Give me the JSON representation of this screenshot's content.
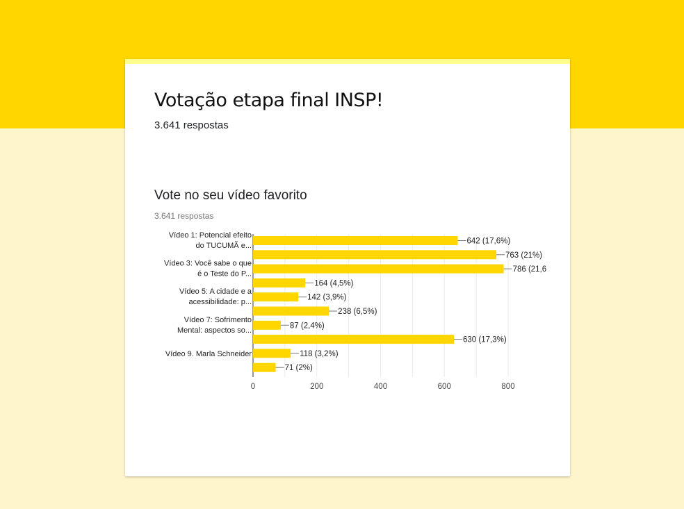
{
  "form": {
    "title": "Votação etapa final INSP!",
    "responses": "3.641 respostas"
  },
  "question": {
    "title": "Vote no seu vídeo favorito",
    "responses": "3.641 respostas"
  },
  "colors": {
    "header": "#ffd600",
    "page_background": "#fff5cc",
    "bar": "#ffd600",
    "card": "#ffffff"
  },
  "chart_data": {
    "type": "bar",
    "orientation": "horizontal",
    "categories": [
      [
        "Vídeo 1: Potencial efeito",
        "do TUCUMÃ e..."
      ],
      [],
      [
        "Vídeo 3: Você sabe o que",
        "é o Teste do P..."
      ],
      [],
      [
        "Vídeo 5: A cidade e a",
        "acessibilidade: p..."
      ],
      [],
      [
        "Vídeo 7: Sofrimento",
        "Mental: aspectos so..."
      ],
      [],
      [
        "Vídeo 9. Marla Schneider"
      ],
      []
    ],
    "values": [
      642,
      763,
      786,
      164,
      142,
      238,
      87,
      630,
      118,
      71
    ],
    "data_labels": [
      "642 (17,6%)",
      "763 (21%)",
      "786 (21,6",
      "164 (4,5%)",
      "142 (3,9%)",
      "238 (6,5%)",
      "87 (2,4%)",
      "630 (17,3%)",
      "118 (3,2%)",
      "71 (2%)"
    ],
    "xlim": [
      0,
      800
    ],
    "xticks": [
      0,
      200,
      400,
      600,
      800
    ],
    "grid": true
  }
}
